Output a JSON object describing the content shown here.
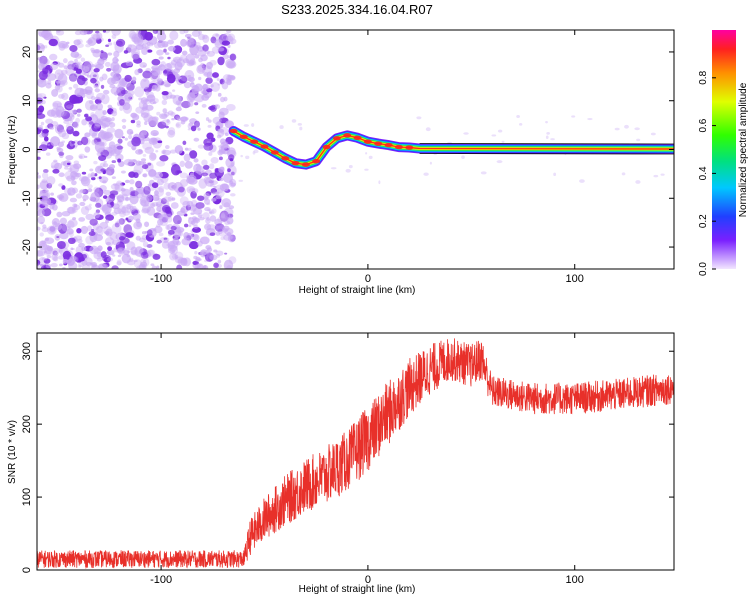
{
  "figure_title": "S233.2025.334.16.04.R07",
  "colors": {
    "snr_line": "#e8302a",
    "noise_purple": "#7a2be0",
    "frame": "#000000"
  },
  "chart_data": [
    {
      "id": "spectrogram",
      "type": "heatmap",
      "title": "",
      "xlabel": "Height of straight line (km)",
      "ylabel": "Frequency (Hz)",
      "xlim": [
        -160,
        148
      ],
      "ylim": [
        -24.5,
        24.5
      ],
      "x_ticks": [
        -100,
        0,
        100
      ],
      "x_tick_labels": [
        "-100",
        "0",
        "100"
      ],
      "y_ticks": [
        -20,
        -10,
        0,
        10,
        20
      ],
      "y_tick_labels": [
        "-20",
        "-10",
        "0",
        "10",
        "20"
      ],
      "noise_region_x": [
        -160,
        -65
      ],
      "carrier_start_x": -65,
      "carrier_trace": {
        "x": [
          -65,
          -60,
          -55,
          -50,
          -45,
          -40,
          -35,
          -30,
          -25,
          -20,
          -15,
          -10,
          -5,
          0,
          5,
          10,
          15,
          20,
          25,
          148
        ],
        "freq_hz": [
          3.8,
          2.6,
          1.6,
          0.6,
          -0.6,
          -1.8,
          -2.8,
          -3.1,
          -2.4,
          0.5,
          2.3,
          2.9,
          2.4,
          1.6,
          1.2,
          0.9,
          0.5,
          0.4,
          0.2,
          0.1
        ]
      },
      "colorbar": {
        "label": "Normalized spectral amplitude",
        "range": [
          0.0,
          1.0
        ],
        "ticks": [
          0.0,
          0.2,
          0.4,
          0.6,
          0.8
        ],
        "tick_labels": [
          "0.0",
          "0.2",
          "0.4",
          "0.6",
          "0.8"
        ]
      }
    },
    {
      "id": "snr",
      "type": "line",
      "title": "",
      "xlabel": "Height of straight line (km)",
      "ylabel": "SNR (10 * v/v)",
      "xlim": [
        -160,
        148
      ],
      "ylim": [
        0,
        325
      ],
      "x_ticks": [
        -100,
        0,
        100
      ],
      "x_tick_labels": [
        "-100",
        "0",
        "100"
      ],
      "y_ticks": [
        0,
        100,
        200,
        300
      ],
      "y_tick_labels": [
        "0",
        "100",
        "200",
        "300"
      ],
      "series": [
        {
          "name": "SNR",
          "x": [
            -160,
            -140,
            -120,
            -100,
            -80,
            -60,
            -57,
            -50,
            -40,
            -30,
            -20,
            -10,
            0,
            10,
            20,
            30,
            40,
            50,
            55,
            60,
            80,
            100,
            120,
            148
          ],
          "y": [
            15,
            15,
            15,
            15,
            15,
            15,
            45,
            70,
            95,
            115,
            130,
            150,
            180,
            215,
            250,
            275,
            290,
            280,
            290,
            245,
            235,
            235,
            240,
            250
          ],
          "noise_amplitude": [
            12,
            12,
            12,
            12,
            12,
            12,
            25,
            30,
            35,
            38,
            40,
            42,
            45,
            45,
            40,
            35,
            30,
            30,
            30,
            22,
            22,
            22,
            22,
            22
          ]
        }
      ]
    }
  ]
}
